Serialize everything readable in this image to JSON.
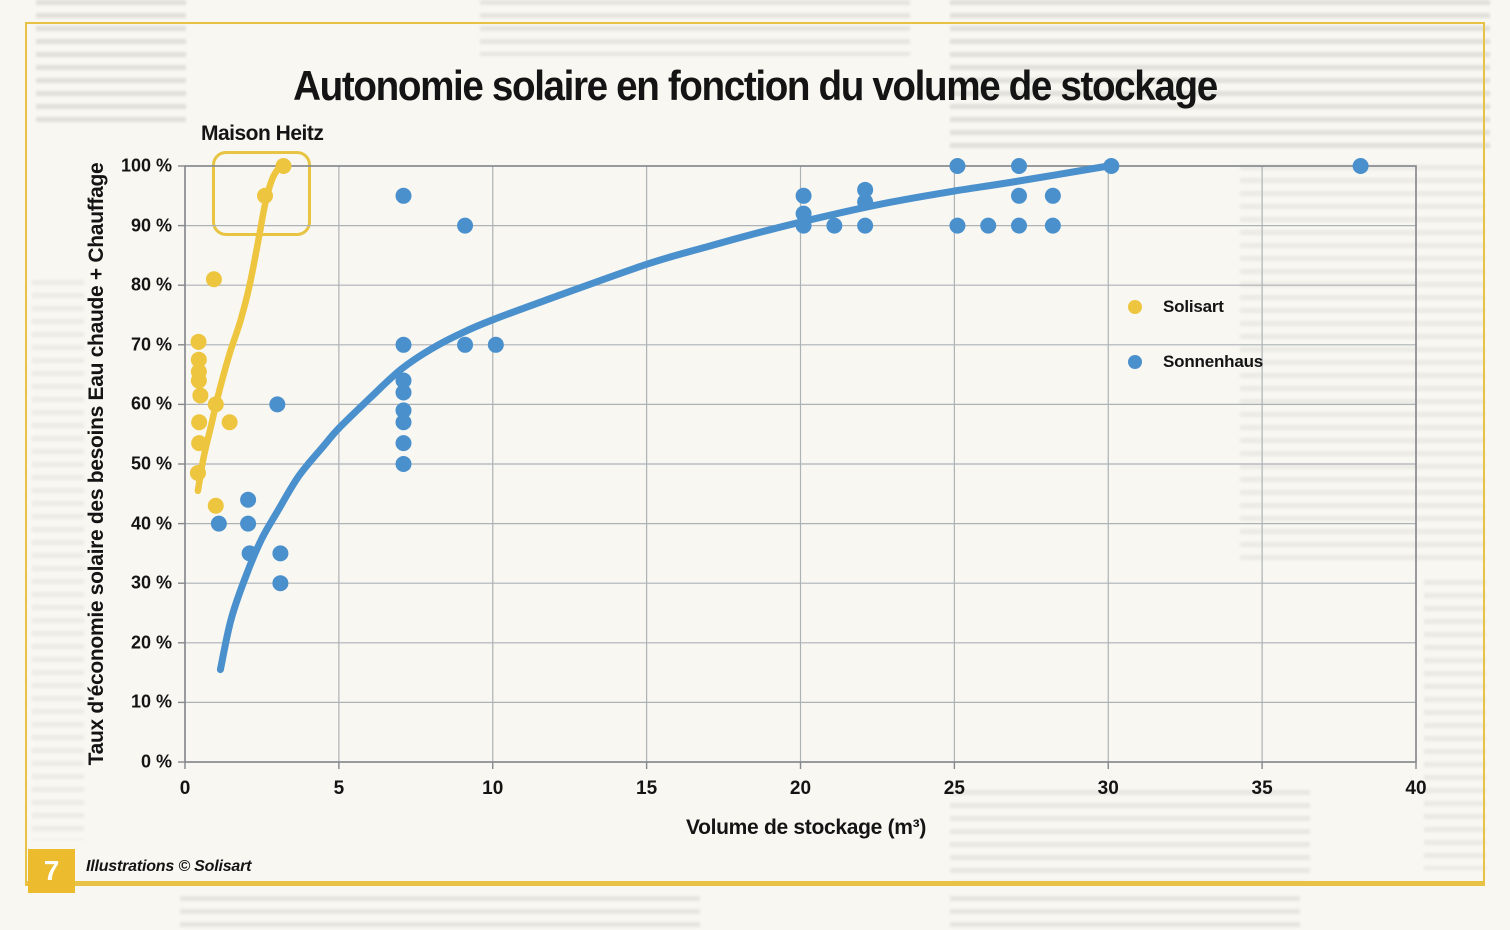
{
  "page": {
    "badge_number": "7",
    "credit": "Illustrations © Solisart"
  },
  "colors": {
    "frame": "#e7c244",
    "badge": "#ecbc2e",
    "grid": "#adb2b6",
    "axis": "#84878c",
    "solisart": "#eec53e",
    "sonnenhaus": "#4a90cd"
  },
  "chart_data": {
    "type": "scatter",
    "title": "Autonomie solaire en fonction du volume de stockage",
    "annotation": "Maison Heitz",
    "xlabel": "Volume de stockage (m³)",
    "ylabel": "Taux d'économie solaire des besoins Eau chaude + Chauffage",
    "xlim": [
      0,
      40
    ],
    "ylim": [
      0,
      100
    ],
    "x_ticks": [
      0,
      5,
      10,
      15,
      20,
      25,
      30,
      35,
      40
    ],
    "y_ticks": [
      0,
      10,
      20,
      30,
      40,
      50,
      60,
      70,
      80,
      90,
      100
    ],
    "y_tick_suffix": " %",
    "grid": true,
    "legend_position": "right-middle",
    "series": [
      {
        "name": "Solisart",
        "color": "#eec53e",
        "points": [
          [
            0.44,
            70.5
          ],
          [
            0.45,
            67.5
          ],
          [
            0.45,
            65.5
          ],
          [
            0.45,
            64
          ],
          [
            0.5,
            61.5
          ],
          [
            0.46,
            57
          ],
          [
            0.46,
            53.5
          ],
          [
            0.42,
            48.5
          ],
          [
            0.94,
            81
          ],
          [
            1.0,
            60
          ],
          [
            1.0,
            43
          ],
          [
            1.45,
            57
          ],
          [
            2.6,
            95
          ],
          [
            3.2,
            100
          ]
        ],
        "trend": [
          [
            0.42,
            45.5
          ],
          [
            0.6,
            51
          ],
          [
            0.85,
            56.5
          ],
          [
            1.1,
            62
          ],
          [
            1.45,
            68.5
          ],
          [
            1.8,
            74
          ],
          [
            2.1,
            80
          ],
          [
            2.4,
            88
          ],
          [
            2.62,
            94
          ],
          [
            2.85,
            98
          ],
          [
            3.1,
            100
          ],
          [
            3.22,
            100.4
          ]
        ]
      },
      {
        "name": "Sonnenhaus",
        "color": "#4a90cd",
        "points": [
          [
            1.1,
            40
          ],
          [
            2.05,
            44
          ],
          [
            2.05,
            40
          ],
          [
            2.1,
            35
          ],
          [
            3.0,
            60
          ],
          [
            3.1,
            35
          ],
          [
            3.1,
            30
          ],
          [
            7.1,
            95
          ],
          [
            7.1,
            70
          ],
          [
            7.1,
            64
          ],
          [
            7.1,
            62
          ],
          [
            7.1,
            59
          ],
          [
            7.1,
            57
          ],
          [
            7.1,
            53.5
          ],
          [
            7.1,
            50
          ],
          [
            9.1,
            90
          ],
          [
            9.1,
            70
          ],
          [
            10.1,
            70
          ],
          [
            20.1,
            95
          ],
          [
            20.1,
            92
          ],
          [
            20.1,
            90
          ],
          [
            21.1,
            90
          ],
          [
            22.1,
            96
          ],
          [
            22.1,
            94
          ],
          [
            22.1,
            90
          ],
          [
            25.1,
            100
          ],
          [
            25.1,
            90
          ],
          [
            26.1,
            90
          ],
          [
            27.1,
            100
          ],
          [
            27.1,
            95
          ],
          [
            27.1,
            90
          ],
          [
            28.2,
            95
          ],
          [
            28.2,
            90
          ],
          [
            30.1,
            100
          ],
          [
            38.2,
            100
          ]
        ],
        "trend": [
          [
            1.15,
            15.5
          ],
          [
            1.5,
            24
          ],
          [
            2,
            31.5
          ],
          [
            2.5,
            37.5
          ],
          [
            3,
            42
          ],
          [
            3.7,
            48
          ],
          [
            4.5,
            53
          ],
          [
            5,
            56
          ],
          [
            6,
            61
          ],
          [
            7,
            65.8
          ],
          [
            8,
            69.3
          ],
          [
            9,
            72
          ],
          [
            10,
            74.2
          ],
          [
            12,
            78
          ],
          [
            15,
            83.5
          ],
          [
            17,
            86.5
          ],
          [
            19,
            89.3
          ],
          [
            21,
            91.8
          ],
          [
            23,
            94
          ],
          [
            25,
            95.8
          ],
          [
            27,
            97.4
          ],
          [
            30,
            100
          ]
        ]
      }
    ]
  }
}
